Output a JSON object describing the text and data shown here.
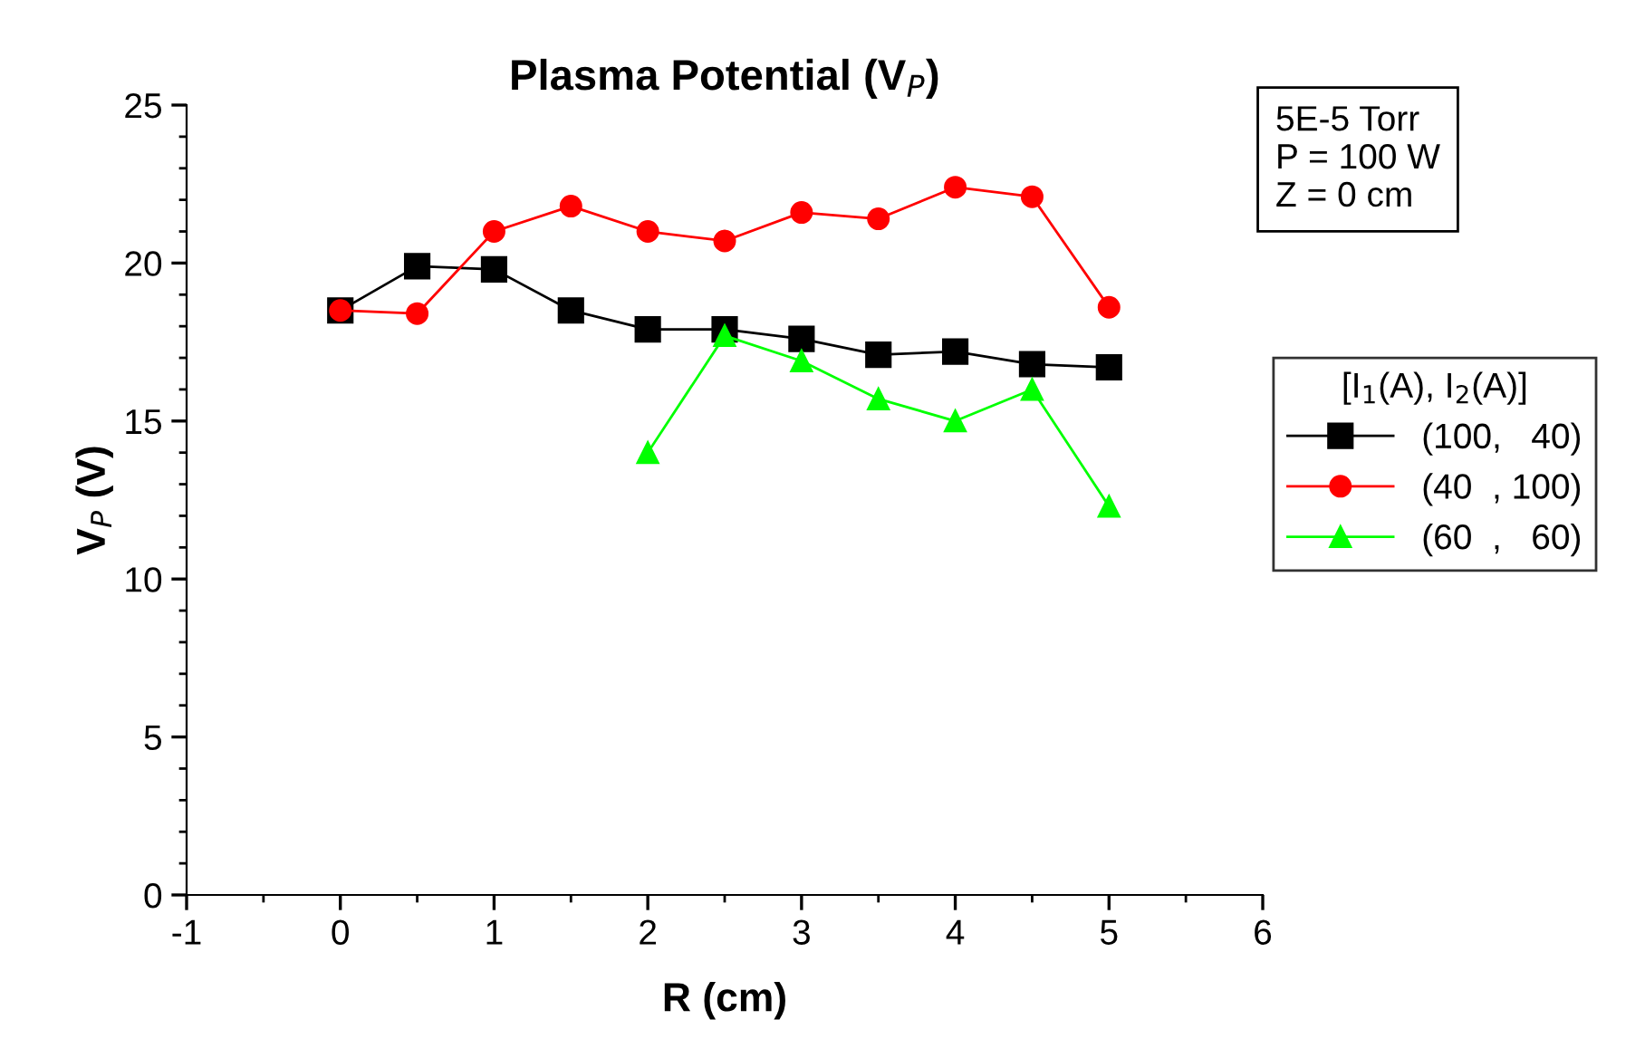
{
  "chart_data": {
    "type": "line",
    "title": "Plasma Potential (V$_{P}$)",
    "xlabel": "R (cm)",
    "ylabel": "V$_{P}$ (V)",
    "legend_title": "[I$_{1}$(A), I$_{2}$(A)]",
    "annotations": [
      "5E-5 Torr\nP = 100 W\nZ = 0 cm"
    ],
    "xlim": [
      -1,
      6
    ],
    "xticks": [
      -1,
      0,
      1,
      2,
      3,
      4,
      5,
      6
    ],
    "ylim": [
      0,
      25
    ],
    "yticks": [
      0,
      5,
      10,
      15,
      20,
      25
    ],
    "grid": false,
    "legend": "right",
    "line_style": "solid",
    "series": [
      {
        "name": "(100,   40)",
        "color": "#000000",
        "marker": "square",
        "x": [
          0,
          0.5,
          1,
          1.5,
          2,
          2.5,
          3,
          3.5,
          4,
          4.5,
          5
        ],
        "values": [
          18.5,
          19.9,
          19.8,
          18.5,
          17.9,
          17.9,
          17.6,
          17.1,
          17.2,
          16.8,
          16.7
        ]
      },
      {
        "name": "(40  , 100)",
        "color": "#ff0000",
        "marker": "circle",
        "x": [
          0,
          0.5,
          1,
          1.5,
          2,
          2.5,
          3,
          3.5,
          4,
          4.5,
          5
        ],
        "values": [
          18.5,
          18.4,
          21.0,
          21.8,
          21.0,
          20.7,
          21.6,
          21.4,
          22.4,
          22.1,
          18.6
        ]
      },
      {
        "name": "(60  ,   60)",
        "color": "#00ff00",
        "marker": "triangle",
        "x": [
          2,
          2.5,
          3,
          3.5,
          4,
          4.5,
          5
        ],
        "values": [
          14.0,
          17.7,
          16.9,
          15.7,
          15.0,
          16.0,
          12.3
        ]
      }
    ]
  }
}
